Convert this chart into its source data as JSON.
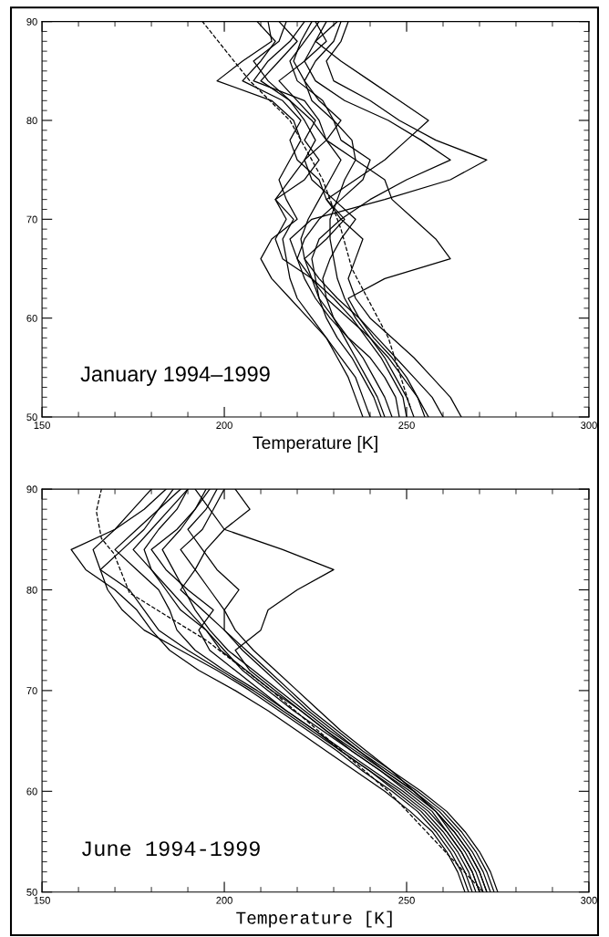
{
  "chart_data": [
    {
      "type": "line",
      "xlabel": "Temperature [K]",
      "annotations": [
        "January 1994–1999"
      ],
      "xlim": [
        150,
        300
      ],
      "xticks": [
        150,
        200,
        250,
        300
      ],
      "ylim": [
        50,
        90
      ],
      "yticks": [
        50,
        60,
        70,
        80,
        90
      ],
      "grid": false,
      "legend": false,
      "marker": "none",
      "line_style": "solid",
      "series": [
        {
          "color": "#000000",
          "x": [
            240,
            238,
            236,
            232,
            228,
            224,
            220,
            218,
            217,
            216,
            219,
            214,
            222,
            226,
            222,
            225,
            220,
            215,
            222,
            228,
            225
          ],
          "values": [
            50,
            52,
            54,
            56,
            58,
            60,
            62,
            64,
            66,
            68,
            70,
            72,
            74,
            76,
            78,
            80,
            82,
            84,
            86,
            88,
            90
          ]
        },
        {
          "color": "#000000",
          "x": [
            243,
            241,
            238,
            235,
            231,
            228,
            226,
            225,
            224,
            226,
            232,
            240,
            250,
            262,
            254,
            245,
            233,
            225,
            222,
            225,
            231
          ],
          "values": [
            50,
            52,
            54,
            56,
            58,
            60,
            62,
            64,
            66,
            68,
            70,
            72,
            74,
            76,
            78,
            80,
            82,
            84,
            86,
            88,
            90
          ]
        },
        {
          "color": "#000000",
          "x": [
            248,
            247,
            244,
            240,
            234,
            229,
            225,
            222,
            220,
            218,
            224,
            244,
            262,
            272,
            258,
            248,
            240,
            230,
            228,
            232,
            234
          ],
          "values": [
            50,
            52,
            54,
            56,
            58,
            60,
            62,
            64,
            66,
            68,
            70,
            72,
            74,
            76,
            78,
            80,
            82,
            84,
            86,
            88,
            90
          ]
        },
        {
          "color": "#000000",
          "x": [
            252,
            250,
            247,
            244,
            240,
            236,
            233,
            231,
            230,
            229,
            229,
            231,
            233,
            236,
            235,
            230,
            227,
            220,
            218,
            222,
            226
          ],
          "values": [
            50,
            52,
            54,
            56,
            58,
            60,
            62,
            64,
            66,
            68,
            70,
            72,
            74,
            76,
            78,
            80,
            82,
            84,
            86,
            88,
            90
          ]
        },
        {
          "color": "#000000",
          "x": [
            256,
            253,
            250,
            246,
            241,
            237,
            234,
            244,
            262,
            258,
            252,
            246,
            244,
            236,
            228,
            224,
            218,
            210,
            215,
            220,
            215
          ],
          "values": [
            50,
            52,
            54,
            56,
            58,
            60,
            62,
            64,
            66,
            68,
            70,
            72,
            74,
            76,
            78,
            80,
            82,
            84,
            86,
            88,
            90
          ]
        },
        {
          "color": "#000000",
          "x": [
            265,
            262,
            257,
            252,
            246,
            240,
            236,
            234,
            236,
            238,
            232,
            228,
            236,
            244,
            250,
            256,
            248,
            240,
            232,
            225,
            228
          ],
          "values": [
            50,
            52,
            54,
            56,
            58,
            60,
            62,
            64,
            66,
            68,
            70,
            72,
            74,
            76,
            78,
            80,
            82,
            84,
            86,
            88,
            90
          ]
        },
        {
          "color": "#000000",
          "x": [
            246,
            244,
            241,
            238,
            234,
            230,
            226,
            224,
            222,
            228,
            233,
            228,
            226,
            220,
            218,
            221,
            216,
            205,
            210,
            214,
            209
          ],
          "values": [
            50,
            52,
            54,
            56,
            58,
            60,
            62,
            64,
            66,
            68,
            70,
            72,
            74,
            76,
            78,
            80,
            82,
            84,
            86,
            88,
            90
          ]
        },
        {
          "color": "#000000",
          "x": [
            250,
            249,
            246,
            243,
            239,
            235,
            230,
            224,
            216,
            214,
            217,
            214,
            218,
            222,
            225,
            222,
            218,
            212,
            208,
            215,
            217
          ],
          "values": [
            50,
            52,
            54,
            56,
            58,
            60,
            62,
            64,
            66,
            68,
            70,
            72,
            74,
            76,
            78,
            80,
            82,
            84,
            86,
            88,
            90
          ]
        },
        {
          "color": "#000000",
          "x": [
            238,
            236,
            234,
            231,
            228,
            223,
            218,
            213,
            210,
            213,
            220,
            217,
            215,
            218,
            221,
            219,
            213,
            198,
            205,
            213,
            212
          ],
          "values": [
            50,
            52,
            54,
            56,
            58,
            60,
            62,
            64,
            66,
            68,
            70,
            72,
            74,
            76,
            78,
            80,
            82,
            84,
            86,
            88,
            90
          ]
        },
        {
          "color": "#000000",
          "x": [
            255,
            253,
            249,
            245,
            240,
            234,
            228,
            224,
            220,
            222,
            226,
            232,
            238,
            240,
            232,
            230,
            224,
            222,
            225,
            230,
            232
          ],
          "values": [
            50,
            52,
            54,
            56,
            58,
            60,
            62,
            64,
            66,
            68,
            70,
            72,
            74,
            76,
            78,
            80,
            82,
            84,
            86,
            88,
            90
          ]
        },
        {
          "color": "#000000",
          "x": [
            244,
            242,
            239,
            236,
            233,
            230,
            228,
            227,
            229,
            232,
            236,
            230,
            224,
            222,
            228,
            232,
            226,
            222,
            219,
            221,
            224
          ],
          "values": [
            50,
            52,
            54,
            56,
            58,
            60,
            62,
            64,
            66,
            68,
            70,
            72,
            74,
            76,
            78,
            80,
            82,
            84,
            86,
            88,
            90
          ]
        },
        {
          "color": "#000000",
          "x": [
            260,
            257,
            252,
            247,
            242,
            237,
            231,
            226,
            222,
            221,
            223,
            226,
            229,
            232,
            228,
            226,
            222,
            208,
            212,
            218,
            222
          ],
          "values": [
            50,
            52,
            54,
            56,
            58,
            60,
            62,
            64,
            66,
            68,
            70,
            72,
            74,
            76,
            78,
            80,
            82,
            84,
            86,
            88,
            90
          ]
        },
        {
          "color": "#000000",
          "line_style": "dashed",
          "x": [
            251,
            245,
            235,
            232,
            227,
            218,
            207,
            194
          ],
          "values": [
            51,
            58,
            65,
            69,
            74,
            80,
            84,
            90
          ]
        }
      ]
    },
    {
      "type": "line",
      "xlabel": "Temperature [K]",
      "annotations": [
        "June 1994-1999"
      ],
      "xlim": [
        150,
        300
      ],
      "xticks": [
        150,
        200,
        250,
        300
      ],
      "ylim": [
        50,
        90
      ],
      "yticks": [
        50,
        60,
        70,
        80,
        90
      ],
      "grid": false,
      "legend": false,
      "marker": "none",
      "line_style": "solid",
      "series": [
        {
          "color": "#000000",
          "x": [
            266,
            264,
            261,
            257,
            251,
            244,
            236,
            228,
            220,
            212,
            203,
            193,
            185,
            180,
            176,
            170,
            162,
            158,
            170,
            178,
            184
          ],
          "values": [
            50,
            52,
            54,
            56,
            58,
            60,
            62,
            64,
            66,
            68,
            70,
            72,
            74,
            76,
            78,
            80,
            82,
            84,
            86,
            88,
            90
          ]
        },
        {
          "color": "#000000",
          "x": [
            270,
            268,
            265,
            261,
            256,
            249,
            241,
            233,
            225,
            217,
            209,
            200,
            192,
            187,
            185,
            182,
            176,
            170,
            176,
            182,
            188
          ],
          "values": [
            50,
            52,
            54,
            56,
            58,
            60,
            62,
            64,
            66,
            68,
            70,
            72,
            74,
            76,
            78,
            80,
            82,
            84,
            86,
            88,
            90
          ]
        },
        {
          "color": "#000000",
          "x": [
            272,
            270,
            267,
            263,
            258,
            251,
            243,
            235,
            227,
            219,
            212,
            205,
            200,
            195,
            190,
            185,
            180,
            175,
            180,
            185,
            190
          ],
          "values": [
            50,
            52,
            54,
            56,
            58,
            60,
            62,
            64,
            66,
            68,
            70,
            72,
            74,
            76,
            78,
            80,
            82,
            84,
            86,
            88,
            90
          ]
        },
        {
          "color": "#000000",
          "x": [
            274,
            272,
            269,
            265,
            260,
            253,
            245,
            237,
            229,
            222,
            215,
            208,
            201,
            196,
            192,
            189,
            186,
            183,
            188,
            192,
            195
          ],
          "values": [
            50,
            52,
            54,
            56,
            58,
            60,
            62,
            64,
            66,
            68,
            70,
            72,
            74,
            76,
            78,
            80,
            82,
            84,
            86,
            88,
            90
          ]
        },
        {
          "color": "#000000",
          "x": [
            268,
            266,
            263,
            259,
            254,
            247,
            240,
            232,
            224,
            216,
            208,
            199,
            190,
            182,
            178,
            174,
            166,
            164,
            170,
            175,
            180
          ],
          "values": [
            50,
            52,
            54,
            56,
            58,
            60,
            62,
            64,
            66,
            68,
            70,
            72,
            74,
            76,
            78,
            80,
            82,
            84,
            86,
            88,
            90
          ]
        },
        {
          "color": "#000000",
          "x": [
            271,
            269,
            266,
            262,
            258,
            252,
            246,
            239,
            232,
            226,
            220,
            214,
            208,
            203,
            200,
            196,
            192,
            188,
            194,
            197,
            200
          ],
          "values": [
            50,
            52,
            54,
            56,
            58,
            60,
            62,
            64,
            66,
            68,
            70,
            72,
            74,
            76,
            78,
            80,
            82,
            84,
            86,
            88,
            90
          ]
        },
        {
          "color": "#000000",
          "x": [
            273,
            271,
            268,
            264,
            259,
            252,
            244,
            236,
            228,
            221,
            214,
            207,
            203,
            210,
            212,
            220,
            230,
            216,
            200,
            196,
            192
          ],
          "values": [
            50,
            52,
            54,
            56,
            58,
            60,
            62,
            64,
            66,
            68,
            70,
            72,
            74,
            76,
            78,
            80,
            82,
            84,
            86,
            88,
            90
          ]
        },
        {
          "color": "#000000",
          "x": [
            269,
            267,
            264,
            260,
            255,
            248,
            240,
            232,
            225,
            217,
            210,
            203,
            196,
            193,
            197,
            190,
            184,
            180,
            187,
            192,
            196
          ],
          "values": [
            50,
            52,
            54,
            56,
            58,
            60,
            62,
            64,
            66,
            68,
            70,
            72,
            74,
            76,
            78,
            80,
            82,
            84,
            86,
            88,
            90
          ]
        },
        {
          "color": "#000000",
          "x": [
            275,
            273,
            270,
            266,
            261,
            254,
            246,
            238,
            231,
            224,
            218,
            212,
            206,
            200,
            200,
            204,
            198,
            194,
            190,
            195,
            198
          ],
          "values": [
            50,
            52,
            54,
            56,
            58,
            60,
            62,
            64,
            66,
            68,
            70,
            72,
            74,
            76,
            78,
            80,
            82,
            84,
            86,
            88,
            90
          ]
        },
        {
          "color": "#000000",
          "x": [
            267,
            265,
            262,
            258,
            253,
            246,
            238,
            231,
            223,
            215,
            207,
            198,
            188,
            178,
            172,
            168,
            166,
            172,
            178,
            182,
            186
          ],
          "values": [
            50,
            52,
            54,
            56,
            58,
            60,
            62,
            64,
            66,
            68,
            70,
            72,
            74,
            76,
            78,
            80,
            82,
            84,
            86,
            88,
            90
          ]
        },
        {
          "color": "#000000",
          "x": [
            272,
            270,
            267,
            263,
            258,
            252,
            244,
            237,
            230,
            223,
            217,
            211,
            205,
            200,
            194,
            188,
            192,
            195,
            200,
            207,
            203
          ],
          "values": [
            50,
            52,
            54,
            56,
            58,
            60,
            62,
            64,
            66,
            68,
            70,
            72,
            74,
            76,
            78,
            80,
            82,
            84,
            86,
            88,
            90
          ]
        },
        {
          "color": "#000000",
          "x": [
            270,
            268,
            265,
            261,
            257,
            250,
            243,
            235,
            228,
            221,
            213,
            206,
            199,
            195,
            188,
            184,
            180,
            178,
            182,
            187,
            190
          ],
          "values": [
            50,
            52,
            54,
            56,
            58,
            60,
            62,
            64,
            66,
            68,
            70,
            72,
            74,
            76,
            78,
            80,
            82,
            84,
            86,
            88,
            90
          ]
        },
        {
          "color": "#000000",
          "line_style": "dashed",
          "x": [
            271,
            245,
            213,
            195,
            174,
            169.7,
            166.3,
            164.9,
            166.3
          ],
          "values": [
            50,
            60,
            70,
            75,
            79.7,
            83.6,
            85.1,
            87.8,
            90
          ]
        }
      ]
    }
  ]
}
